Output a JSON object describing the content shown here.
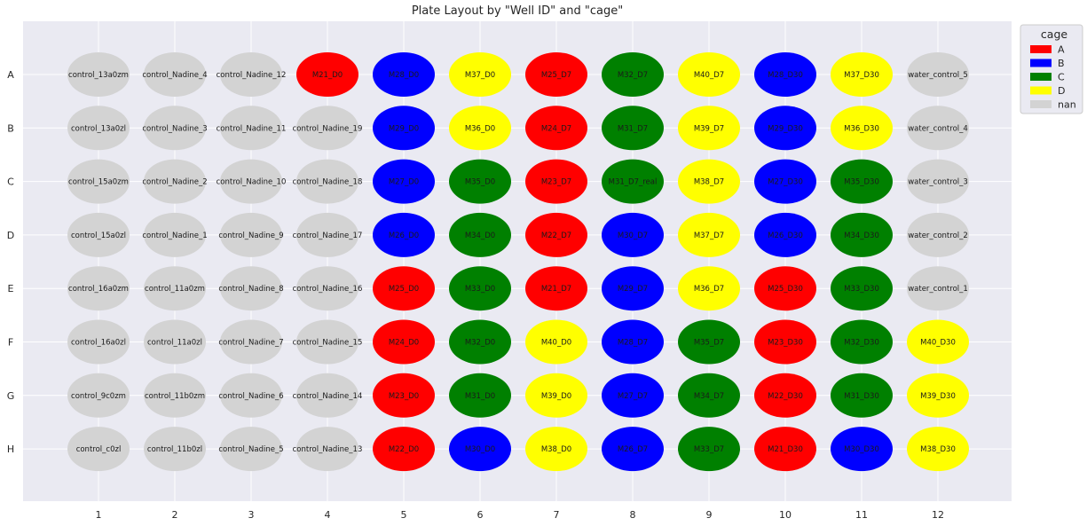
{
  "chart_data": {
    "type": "scatter",
    "title": "Plate Layout by \"Well ID\" and \"cage\"",
    "columns": [
      "1",
      "2",
      "3",
      "4",
      "5",
      "6",
      "7",
      "8",
      "9",
      "10",
      "11",
      "12"
    ],
    "rows": [
      "A",
      "B",
      "C",
      "D",
      "E",
      "F",
      "G",
      "H"
    ],
    "grid": true,
    "legend": {
      "title": "cage",
      "placement": "outside top-right",
      "entries": [
        {
          "label": "A",
          "color": "#ff0000"
        },
        {
          "label": "B",
          "color": "#0000ff"
        },
        {
          "label": "C",
          "color": "#008000"
        },
        {
          "label": "D",
          "color": "#ffff00"
        },
        {
          "label": "nan",
          "color": "#d3d3d3"
        }
      ]
    },
    "wells": [
      [
        "control_13a0zm",
        "nan"
      ],
      [
        "control_Nadine_4",
        "nan"
      ],
      [
        "control_Nadine_12",
        "nan"
      ],
      [
        "M21_D0",
        "A"
      ],
      [
        "M28_D0",
        "B"
      ],
      [
        "M37_D0",
        "D"
      ],
      [
        "M25_D7",
        "A"
      ],
      [
        "M32_D7",
        "C"
      ],
      [
        "M40_D7",
        "D"
      ],
      [
        "M28_D30",
        "B"
      ],
      [
        "M37_D30",
        "D"
      ],
      [
        "water_control_5",
        "nan"
      ],
      [
        "control_13a0zl",
        "nan"
      ],
      [
        "control_Nadine_3",
        "nan"
      ],
      [
        "control_Nadine_11",
        "nan"
      ],
      [
        "control_Nadine_19",
        "nan"
      ],
      [
        "M29_D0",
        "B"
      ],
      [
        "M36_D0",
        "D"
      ],
      [
        "M24_D7",
        "A"
      ],
      [
        "M31_D7",
        "C"
      ],
      [
        "M39_D7",
        "D"
      ],
      [
        "M29_D30",
        "B"
      ],
      [
        "M36_D30",
        "D"
      ],
      [
        "water_control_4",
        "nan"
      ],
      [
        "control_15a0zm",
        "nan"
      ],
      [
        "control_Nadine_2",
        "nan"
      ],
      [
        "control_Nadine_10",
        "nan"
      ],
      [
        "control_Nadine_18",
        "nan"
      ],
      [
        "M27_D0",
        "B"
      ],
      [
        "M35_D0",
        "C"
      ],
      [
        "M23_D7",
        "A"
      ],
      [
        "M31_D7_real",
        "C"
      ],
      [
        "M38_D7",
        "D"
      ],
      [
        "M27_D30",
        "B"
      ],
      [
        "M35_D30",
        "C"
      ],
      [
        "water_control_3",
        "nan"
      ],
      [
        "control_15a0zl",
        "nan"
      ],
      [
        "control_Nadine_1",
        "nan"
      ],
      [
        "control_Nadine_9",
        "nan"
      ],
      [
        "control_Nadine_17",
        "nan"
      ],
      [
        "M26_D0",
        "B"
      ],
      [
        "M34_D0",
        "C"
      ],
      [
        "M22_D7",
        "A"
      ],
      [
        "M30_D7",
        "B"
      ],
      [
        "M37_D7",
        "D"
      ],
      [
        "M26_D30",
        "B"
      ],
      [
        "M34_D30",
        "C"
      ],
      [
        "water_control_2",
        "nan"
      ],
      [
        "control_16a0zm",
        "nan"
      ],
      [
        "control_11a0zm",
        "nan"
      ],
      [
        "control_Nadine_8",
        "nan"
      ],
      [
        "control_Nadine_16",
        "nan"
      ],
      [
        "M25_D0",
        "A"
      ],
      [
        "M33_D0",
        "C"
      ],
      [
        "M21_D7",
        "A"
      ],
      [
        "M29_D7",
        "B"
      ],
      [
        "M36_D7",
        "D"
      ],
      [
        "M25_D30",
        "A"
      ],
      [
        "M33_D30",
        "C"
      ],
      [
        "water_control_1",
        "nan"
      ],
      [
        "control_16a0zl",
        "nan"
      ],
      [
        "control_11a0zl",
        "nan"
      ],
      [
        "control_Nadine_7",
        "nan"
      ],
      [
        "control_Nadine_15",
        "nan"
      ],
      [
        "M24_D0",
        "A"
      ],
      [
        "M32_D0",
        "C"
      ],
      [
        "M40_D0",
        "D"
      ],
      [
        "M28_D7",
        "B"
      ],
      [
        "M35_D7",
        "C"
      ],
      [
        "M23_D30",
        "A"
      ],
      [
        "M32_D30",
        "C"
      ],
      [
        "M40_D30",
        "D"
      ],
      [
        "control_9c0zm",
        "nan"
      ],
      [
        "control_11b0zm",
        "nan"
      ],
      [
        "control_Nadine_6",
        "nan"
      ],
      [
        "control_Nadine_14",
        "nan"
      ],
      [
        "M23_D0",
        "A"
      ],
      [
        "M31_D0",
        "C"
      ],
      [
        "M39_D0",
        "D"
      ],
      [
        "M27_D7",
        "B"
      ],
      [
        "M34_D7",
        "C"
      ],
      [
        "M22_D30",
        "A"
      ],
      [
        "M31_D30",
        "C"
      ],
      [
        "M39_D30",
        "D"
      ],
      [
        "control_c0zl",
        "nan"
      ],
      [
        "control_11b0zl",
        "nan"
      ],
      [
        "control_Nadine_5",
        "nan"
      ],
      [
        "control_Nadine_13",
        "nan"
      ],
      [
        "M22_D0",
        "A"
      ],
      [
        "M30_D0",
        "B"
      ],
      [
        "M38_D0",
        "D"
      ],
      [
        "M26_D7",
        "B"
      ],
      [
        "M33_D7",
        "C"
      ],
      [
        "M21_D30",
        "A"
      ],
      [
        "M30_D30",
        "B"
      ],
      [
        "M38_D30",
        "D"
      ]
    ]
  }
}
